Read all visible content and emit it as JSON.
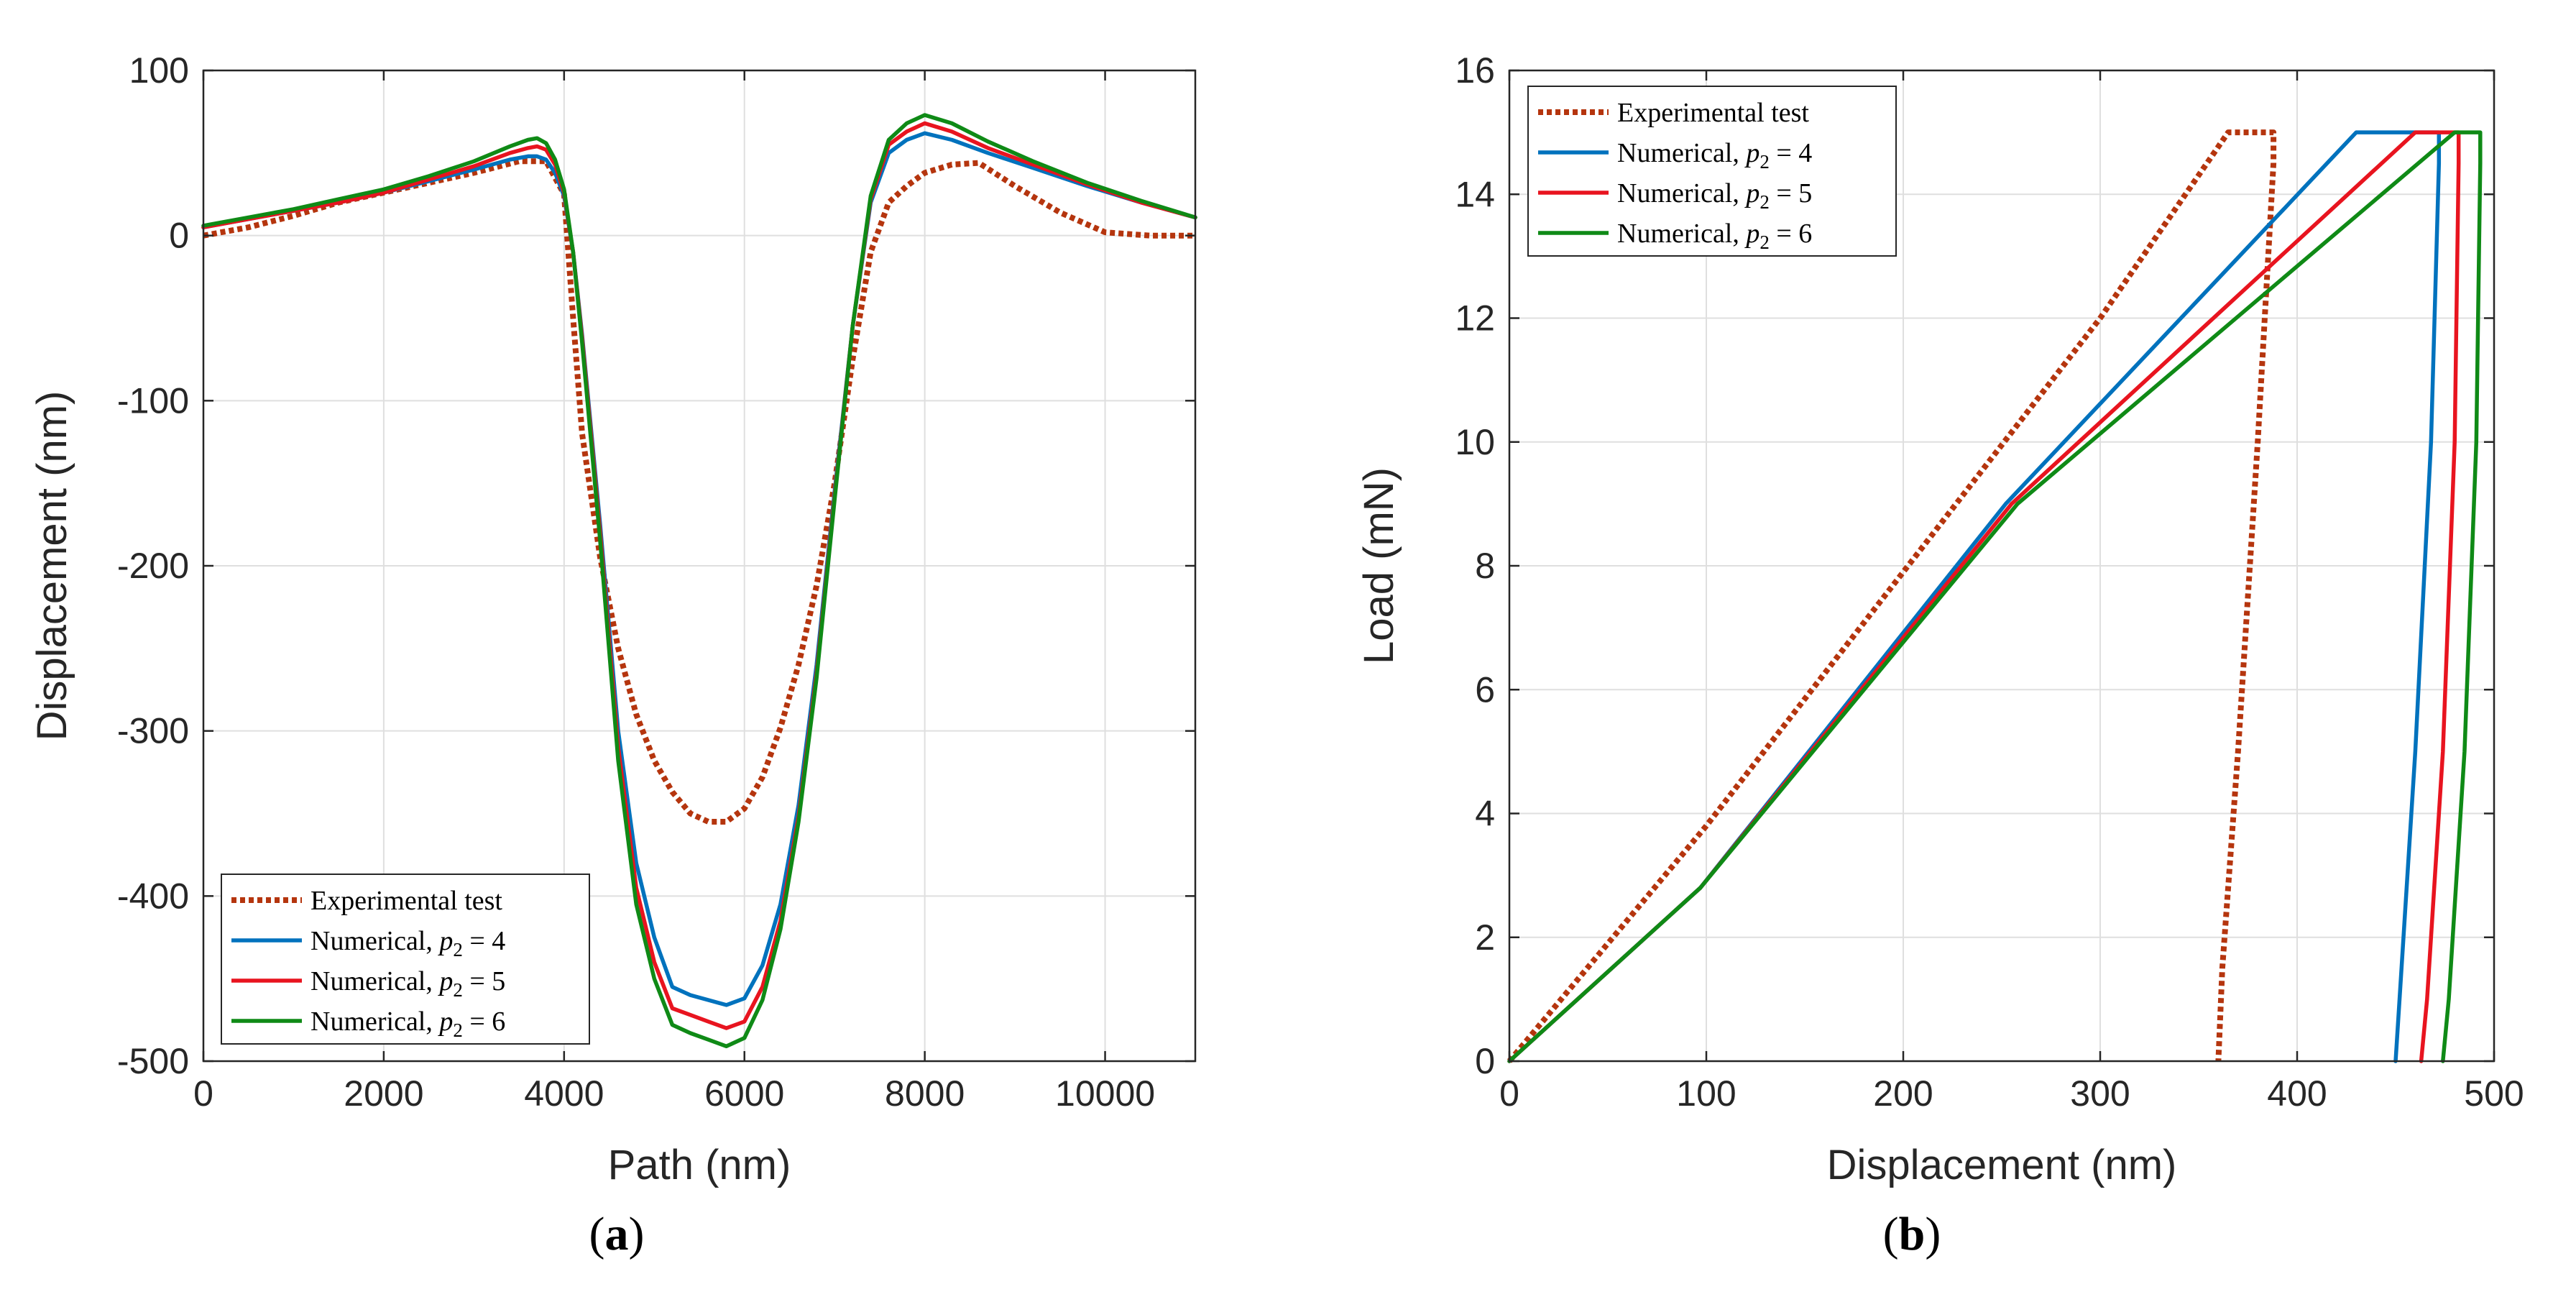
{
  "chart_data": [
    {
      "type": "line",
      "caption": "(a)",
      "caption_letter": "a",
      "xlabel": "Path (nm)",
      "ylabel": "Displacement (nm)",
      "xlim": [
        0,
        11000
      ],
      "ylim": [
        -500,
        100
      ],
      "xticks": [
        0,
        2000,
        4000,
        6000,
        8000,
        10000
      ],
      "yticks": [
        -500,
        -400,
        -300,
        -200,
        -100,
        0,
        100
      ],
      "xtick_labels": [
        "0",
        "2000",
        "4000",
        "6000",
        "8000",
        "10000"
      ],
      "ytick_labels": [
        "-500",
        "-400",
        "-300",
        "-200",
        "-100",
        "0",
        "100"
      ],
      "grid": true,
      "legend_location": "bottom-left",
      "series": [
        {
          "name": "Experimental test",
          "name_prefix": "Experimental test",
          "subscript": "",
          "math_suffix": "",
          "color": "#b5350e",
          "style": "dotted",
          "x": [
            0,
            500,
            1000,
            1500,
            2000,
            2500,
            3000,
            3500,
            3800,
            4000,
            4100,
            4200,
            4400,
            4600,
            4800,
            5000,
            5200,
            5400,
            5600,
            5800,
            6000,
            6200,
            6400,
            6600,
            6800,
            7000,
            7200,
            7400,
            7600,
            7800,
            8000,
            8300,
            8600,
            9000,
            9500,
            10000,
            10500,
            11000
          ],
          "y": [
            0,
            5,
            12,
            20,
            26,
            32,
            38,
            45,
            45,
            25,
            -50,
            -120,
            -195,
            -250,
            -290,
            -318,
            -337,
            -350,
            -355,
            -355,
            -347,
            -328,
            -298,
            -260,
            -212,
            -150,
            -75,
            -10,
            20,
            30,
            38,
            43,
            44,
            30,
            14,
            2,
            0,
            0
          ]
        },
        {
          "name": "Numerical, p2 = 4",
          "name_prefix": "Numerical, ",
          "subscript": "2",
          "math_suffix": " = 4",
          "color": "#0072bd",
          "style": "solid",
          "x": [
            0,
            500,
            1000,
            1500,
            2000,
            2500,
            3000,
            3400,
            3600,
            3700,
            3800,
            3900,
            4000,
            4100,
            4200,
            4400,
            4600,
            4800,
            5000,
            5200,
            5400,
            5600,
            5800,
            6000,
            6200,
            6400,
            6600,
            6800,
            7000,
            7200,
            7400,
            7600,
            7800,
            8000,
            8300,
            8700,
            9200,
            9800,
            10400,
            11000
          ],
          "y": [
            5,
            10,
            15,
            20,
            26,
            33,
            40,
            46,
            48,
            48,
            46,
            38,
            24,
            -10,
            -60,
            -175,
            -300,
            -380,
            -425,
            -455,
            -460,
            -463,
            -466,
            -462,
            -442,
            -405,
            -345,
            -260,
            -155,
            -55,
            20,
            50,
            58,
            62,
            58,
            50,
            41,
            30,
            20,
            11
          ]
        },
        {
          "name": "Numerical, p2 = 5",
          "name_prefix": "Numerical, ",
          "subscript": "2",
          "math_suffix": " = 5",
          "color": "#e8141f",
          "style": "solid",
          "x": [
            0,
            500,
            1000,
            1500,
            2000,
            2500,
            3000,
            3400,
            3600,
            3700,
            3800,
            3900,
            4000,
            4100,
            4200,
            4400,
            4600,
            4800,
            5000,
            5200,
            5400,
            5600,
            5800,
            6000,
            6200,
            6400,
            6600,
            6800,
            7000,
            7200,
            7400,
            7600,
            7800,
            8000,
            8300,
            8700,
            9200,
            9800,
            10400,
            11000
          ],
          "y": [
            5,
            10,
            15,
            20,
            26,
            34,
            42,
            50,
            53,
            54,
            52,
            43,
            26,
            -10,
            -62,
            -180,
            -310,
            -395,
            -440,
            -468,
            -472,
            -476,
            -480,
            -476,
            -455,
            -415,
            -352,
            -265,
            -158,
            -55,
            22,
            55,
            63,
            68,
            63,
            53,
            43,
            31,
            20,
            11
          ]
        },
        {
          "name": "Numerical, p2 = 6",
          "name_prefix": "Numerical, ",
          "subscript": "2",
          "math_suffix": " = 6",
          "color": "#0f8a16",
          "style": "solid",
          "x": [
            0,
            500,
            1000,
            1500,
            2000,
            2500,
            3000,
            3400,
            3600,
            3700,
            3800,
            3900,
            4000,
            4100,
            4200,
            4400,
            4600,
            4800,
            5000,
            5200,
            5400,
            5600,
            5800,
            6000,
            6200,
            6400,
            6600,
            6800,
            7000,
            7200,
            7400,
            7600,
            7800,
            8000,
            8300,
            8700,
            9200,
            9800,
            10400,
            11000
          ],
          "y": [
            6,
            11,
            16,
            22,
            28,
            36,
            45,
            54,
            58,
            59,
            56,
            46,
            28,
            -10,
            -65,
            -185,
            -318,
            -405,
            -450,
            -478,
            -483,
            -487,
            -491,
            -486,
            -463,
            -420,
            -355,
            -268,
            -160,
            -55,
            24,
            58,
            68,
            73,
            68,
            57,
            45,
            32,
            21,
            11
          ]
        }
      ]
    },
    {
      "type": "line",
      "caption": "(b)",
      "caption_letter": "b",
      "xlabel": "Displacement (nm)",
      "ylabel": "Load (mN)",
      "xlim": [
        0,
        500
      ],
      "ylim": [
        0,
        16
      ],
      "xticks": [
        0,
        100,
        200,
        300,
        400,
        500
      ],
      "yticks": [
        0,
        2,
        4,
        6,
        8,
        10,
        12,
        14,
        16
      ],
      "xtick_labels": [
        "0",
        "100",
        "200",
        "300",
        "400",
        "500"
      ],
      "ytick_labels": [
        "0",
        "2",
        "4",
        "6",
        "8",
        "10",
        "12",
        "14",
        "16"
      ],
      "grid": true,
      "legend_location": "top-left",
      "series": [
        {
          "name": "Experimental test",
          "name_prefix": "Experimental test",
          "subscript": "",
          "math_suffix": "",
          "color": "#b5350e",
          "style": "dotted",
          "x": [
            0,
            100,
            200,
            300,
            365,
            388,
            388,
            380,
            370,
            362,
            360
          ],
          "y": [
            0,
            3.8,
            7.9,
            12.0,
            15.0,
            15.0,
            14.5,
            10.0,
            5.0,
            1.5,
            0
          ]
        },
        {
          "name": "Numerical, p2 = 4",
          "name_prefix": "Numerical, ",
          "subscript": "2",
          "math_suffix": " = 4",
          "color": "#0072bd",
          "style": "solid",
          "x": [
            0,
            97,
            252,
            430,
            472,
            472,
            468,
            460,
            452,
            450
          ],
          "y": [
            0,
            2.8,
            9.0,
            15.0,
            15.0,
            14.5,
            10.0,
            5.0,
            1.0,
            0
          ]
        },
        {
          "name": "Numerical, p2 = 5",
          "name_prefix": "Numerical, ",
          "subscript": "2",
          "math_suffix": " = 5",
          "color": "#e8141f",
          "style": "solid",
          "x": [
            0,
            97,
            255,
            460,
            482,
            482,
            480,
            474,
            466,
            463
          ],
          "y": [
            0,
            2.8,
            9.0,
            15.0,
            15.0,
            14.5,
            10.0,
            5.0,
            1.0,
            0
          ]
        },
        {
          "name": "Numerical, p2 = 6",
          "name_prefix": "Numerical, ",
          "subscript": "2",
          "math_suffix": " = 6",
          "color": "#0f8a16",
          "style": "solid",
          "x": [
            0,
            97,
            258,
            480,
            493,
            493,
            491,
            485,
            477,
            474
          ],
          "y": [
            0,
            2.8,
            9.0,
            15.0,
            15.0,
            14.5,
            10.0,
            5.0,
            1.0,
            0
          ]
        }
      ]
    }
  ]
}
